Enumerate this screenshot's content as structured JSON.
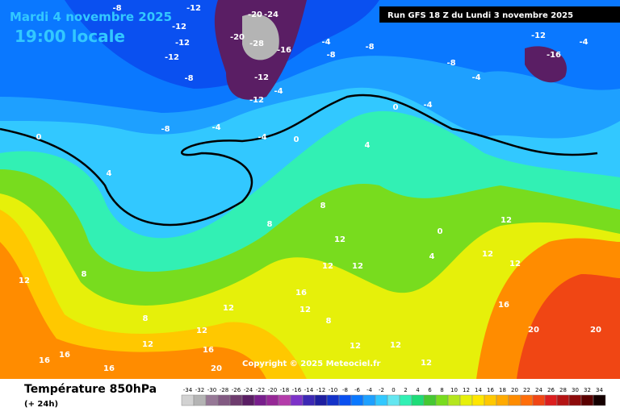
{
  "header": {
    "date": "Mardi 4 novembre 2025",
    "time": "19:00 locale",
    "run": "Run GFS 18 Z du Lundi 3 novembre 2025"
  },
  "copyright": "Copyright © 2025 Meteociel.fr",
  "footer": {
    "title": "Température 850hPa",
    "lead": "(+ 24h)"
  },
  "scale": {
    "labels": [
      -34,
      -32,
      -30,
      -28,
      -26,
      -24,
      -22,
      -20,
      -18,
      -16,
      -14,
      -12,
      -10,
      -8,
      -6,
      -4,
      -2,
      0,
      2,
      4,
      6,
      8,
      10,
      12,
      14,
      16,
      18,
      20,
      22,
      24,
      26,
      28,
      30,
      32,
      34
    ],
    "colors": [
      "#d2d2d2",
      "#b4b4b4",
      "#967896",
      "#825a82",
      "#6e3c6e",
      "#5a1e64",
      "#781e8c",
      "#962896",
      "#b43caa",
      "#7d32c8",
      "#3c28b4",
      "#1e1ea0",
      "#1432c8",
      "#0a50f0",
      "#0a78ff",
      "#1ea0ff",
      "#32c8ff",
      "#64e6f0",
      "#32f0b4",
      "#1edc78",
      "#46c832",
      "#78dc1e",
      "#b4e61e",
      "#e6f00a",
      "#ffe600",
      "#ffc800",
      "#ffaa00",
      "#ff8c00",
      "#ff6e0a",
      "#f04614",
      "#dc1e1e",
      "#b41414",
      "#8c0a0a",
      "#5a0000",
      "#140000"
    ]
  },
  "map_labels": [
    -12,
    -8,
    -12,
    -12,
    -12,
    -20,
    -24,
    -20,
    -28,
    -16,
    -12,
    -8,
    -12,
    -4,
    -4,
    -8,
    -8,
    -8,
    -4,
    -12,
    -16,
    -4,
    -8,
    -4,
    -4,
    0,
    0,
    -4,
    4,
    8,
    8,
    12,
    12,
    12,
    16,
    12,
    12,
    8,
    12,
    16,
    20,
    16,
    16,
    16,
    12,
    12,
    8,
    0,
    4,
    12,
    12,
    12,
    16,
    20,
    20,
    12,
    12,
    8,
    4,
    0,
    12
  ]
}
